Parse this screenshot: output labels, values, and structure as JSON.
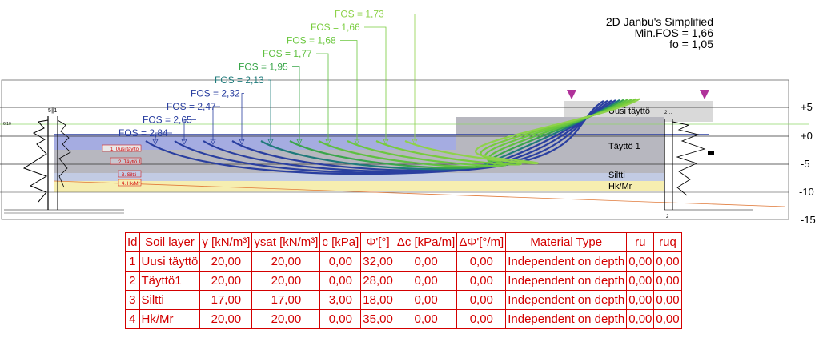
{
  "header": {
    "method": "2D Janbu's Simplified",
    "min_fos": "Min.FOS = 1,66",
    "fo": "fo = 1,05"
  },
  "fos_labels": [
    "FOS = 2,84",
    "FOS = 2,65",
    "FOS = 2,47",
    "FOS = 2,32",
    "FOS = 2,13",
    "FOS = 1,95",
    "FOS = 1,77",
    "FOS = 1,68",
    "FOS = 1,66",
    "FOS = 1,73"
  ],
  "fos_colors": [
    "#2a3fa0",
    "#2a3fa0",
    "#2a3fa0",
    "#2a3fa0",
    "#1f7a7a",
    "#3aa64a",
    "#5fc040",
    "#6cc840",
    "#78cc3c",
    "#8ed24a"
  ],
  "elevation_ticks": [
    "+5",
    "+0",
    "-5",
    "-10",
    "-15"
  ],
  "layer_labels": {
    "uusi": "Uusi täyttö",
    "taytto": "Täyttö 1",
    "siltti": "Siltti",
    "hk": "Hk/Mr"
  },
  "left_legend": [
    "1. Uusi täyttö",
    "2. Täyttö 1",
    "3. Siltti",
    "4. Hk/Mr"
  ],
  "colors": {
    "layer_uusi": "#d9d9d9",
    "layer_taytto": "#b7b7bf",
    "layer_siltti": "#c2cbe4",
    "layer_hk": "#f6eeb0",
    "highlight_band": "#5b68c9",
    "table_red": "#d40000",
    "load_marker": "#b0329a"
  },
  "table": {
    "headers": [
      "Id",
      "Soil layer",
      "γ [kN/m³]",
      "γsat [kN/m³]",
      "c [kPa]",
      "Φ'[°]",
      "Δc [kPa/m]",
      "ΔΦ'[°/m]",
      "Material Type",
      "ru",
      "ruq"
    ],
    "rows": [
      [
        "1",
        "Uusi täyttö",
        "20,00",
        "20,00",
        "0,00",
        "32,00",
        "0,00",
        "0,00",
        "Independent on depth",
        "0,00",
        "0,00"
      ],
      [
        "2",
        "Täyttö1",
        "20,00",
        "20,00",
        "0,00",
        "28,00",
        "0,00",
        "0,00",
        "Independent on depth",
        "0,00",
        "0,00"
      ],
      [
        "3",
        "Siltti",
        "17,00",
        "17,00",
        "3,00",
        "18,00",
        "0,00",
        "0,00",
        "Independent on depth",
        "0,00",
        "0,00"
      ],
      [
        "4",
        "Hk/Mr",
        "20,00",
        "20,00",
        "0,00",
        "35,00",
        "0,00",
        "0,00",
        "Independent on depth",
        "0,00",
        "0,00"
      ]
    ]
  }
}
